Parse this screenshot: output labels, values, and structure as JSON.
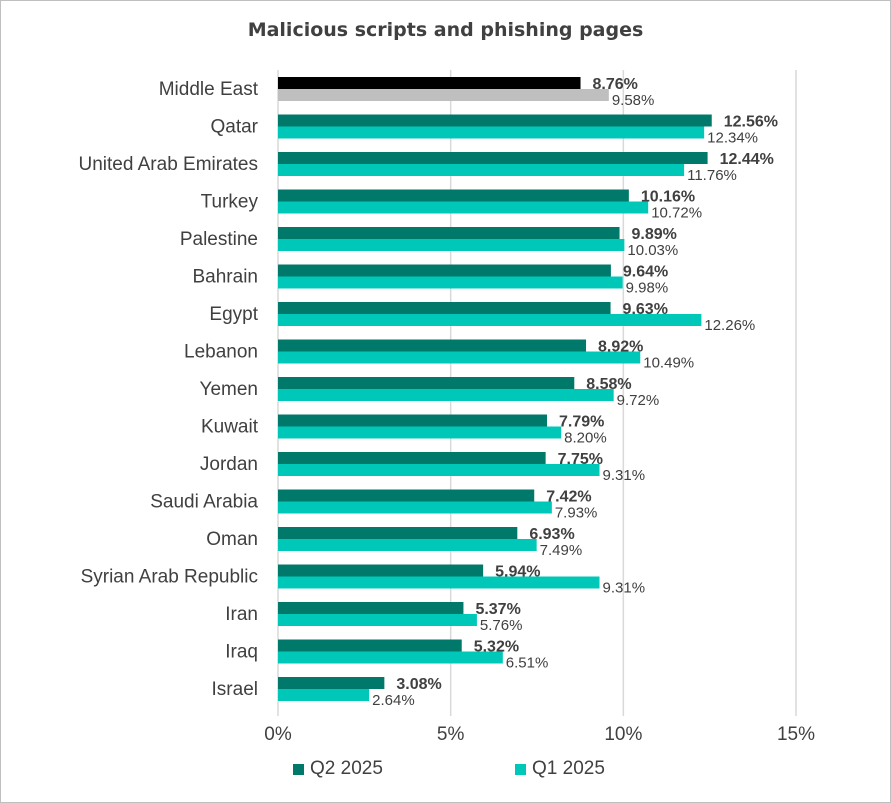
{
  "title": "Malicious scripts and phishing pages",
  "colors": {
    "q2": "#00796b",
    "q1": "#00c8b8",
    "highlight_q2": "#000000",
    "highlight_q1": "#bfbfbf",
    "grid": "#d9d9d9",
    "text": "#404040"
  },
  "legend": {
    "q2_label": "Q2 2025",
    "q1_label": "Q1 2025"
  },
  "chart_data": {
    "type": "bar",
    "orientation": "horizontal",
    "title": "Malicious scripts and phishing pages",
    "categories": [
      "Middle East",
      "Qatar",
      "United Arab Emirates",
      "Turkey",
      "Palestine",
      "Bahrain",
      "Egypt",
      "Lebanon",
      "Yemen",
      "Kuwait",
      "Jordan",
      "Saudi Arabia",
      "Oman",
      "Syrian Arab Republic",
      "Iran",
      "Iraq",
      "Israel"
    ],
    "series": [
      {
        "name": "Q2 2025",
        "values": [
          8.76,
          12.56,
          12.44,
          10.16,
          9.89,
          9.64,
          9.63,
          8.92,
          8.58,
          7.79,
          7.75,
          7.42,
          6.93,
          5.94,
          5.37,
          5.32,
          3.08
        ],
        "labels": [
          "8.76%",
          "12.56%",
          "12.44%",
          "10.16%",
          "9.89%",
          "9.64%",
          "9.63%",
          "8.92%",
          "8.58%",
          "7.79%",
          "7.75%",
          "7.42%",
          "6.93%",
          "5.94%",
          "5.37%",
          "5.32%",
          "3.08%"
        ]
      },
      {
        "name": "Q1 2025",
        "values": [
          9.58,
          12.34,
          11.76,
          10.72,
          10.03,
          9.98,
          12.26,
          10.49,
          9.72,
          8.2,
          9.31,
          7.93,
          7.49,
          9.31,
          5.76,
          6.51,
          2.64
        ],
        "labels": [
          "9.58%",
          "12.34%",
          "11.76%",
          "10.72%",
          "10.03%",
          "9.98%",
          "12.26%",
          "10.49%",
          "9.72%",
          "8.20%",
          "9.31%",
          "7.93%",
          "7.49%",
          "9.31%",
          "5.76%",
          "6.51%",
          "2.64%"
        ]
      }
    ],
    "xlim": [
      0,
      15
    ],
    "xticks": [
      0,
      5,
      10,
      15
    ],
    "xtick_labels": [
      "0%",
      "5%",
      "10%",
      "15%"
    ],
    "grid": true,
    "legend_position": "bottom",
    "highlight_category": "Middle East"
  }
}
